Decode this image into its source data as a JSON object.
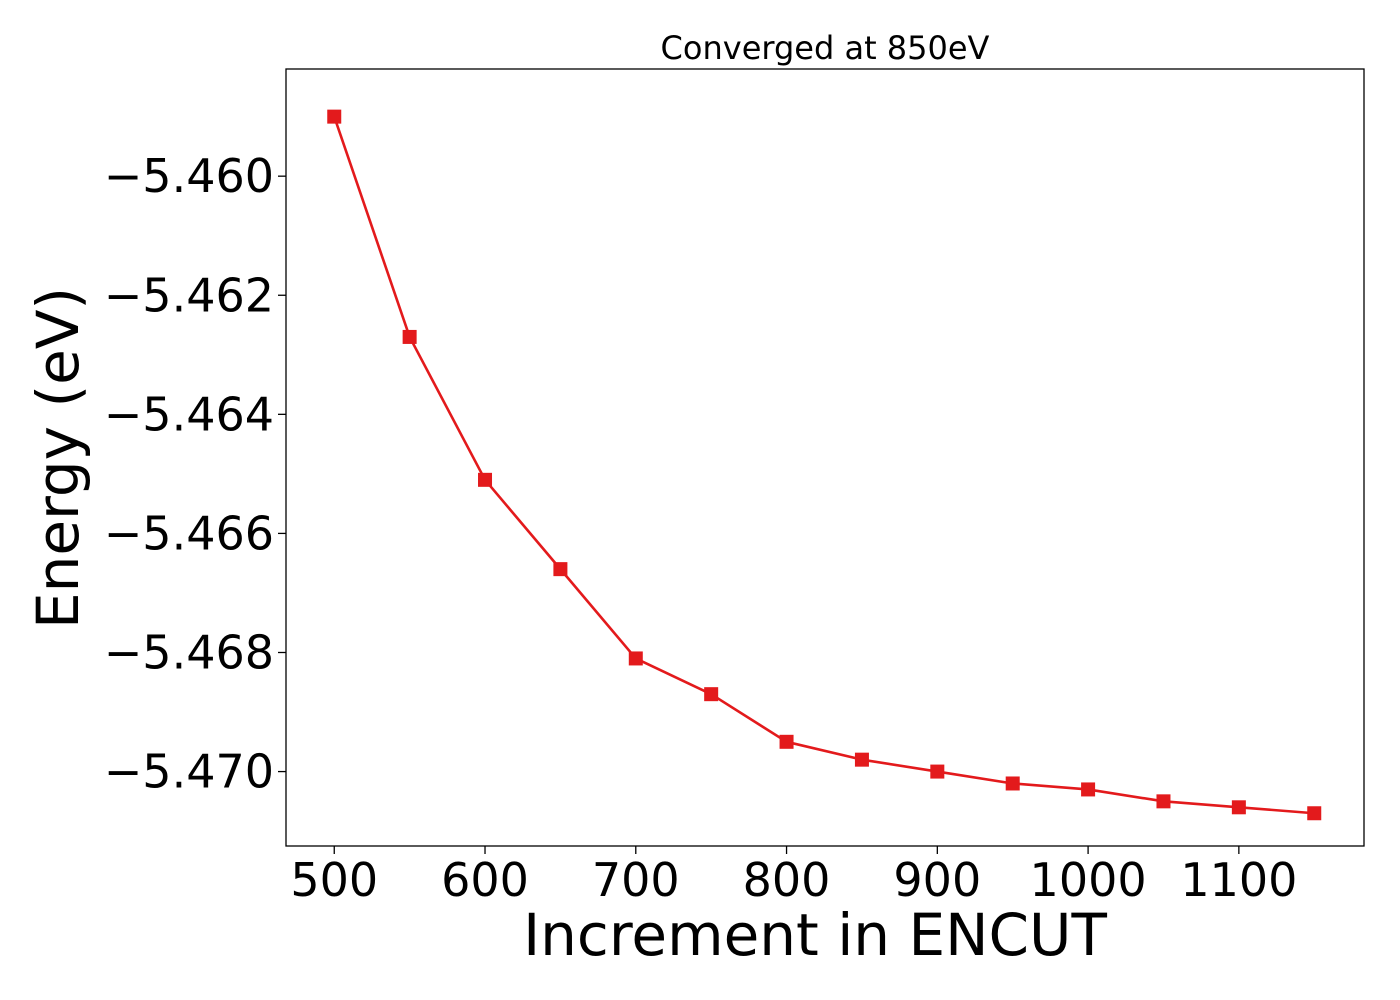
{
  "chart_data": {
    "type": "line",
    "title": "Converged at 850eV",
    "xlabel": "Increment in ENCUT",
    "ylabel": "Energy (eV)",
    "xlim": [
      468,
      1183
    ],
    "ylim": [
      -5.47125,
      -5.4582
    ],
    "xticks": [
      500,
      600,
      700,
      800,
      900,
      1000,
      1100
    ],
    "xtick_labels": [
      "500",
      "600",
      "700",
      "800",
      "900",
      "1000",
      "1100"
    ],
    "yticks": [
      -5.46,
      -5.462,
      -5.464,
      -5.466,
      -5.468,
      -5.47
    ],
    "ytick_labels": [
      "−5.460",
      "−5.462",
      "−5.464",
      "−5.466",
      "−5.468",
      "−5.470"
    ],
    "grid": false,
    "series": [
      {
        "color": "#e31a1c",
        "marker": "square",
        "x": [
          500,
          550,
          600,
          650,
          700,
          750,
          800,
          850,
          900,
          950,
          1000,
          1050,
          1100,
          1150
        ],
        "y": [
          -5.459,
          -5.4627,
          -5.4651,
          -5.4666,
          -5.4681,
          -5.4687,
          -5.4695,
          -5.4698,
          -5.47,
          -5.4702,
          -5.4703,
          -5.4705,
          -5.4706,
          -5.4707
        ]
      }
    ]
  }
}
